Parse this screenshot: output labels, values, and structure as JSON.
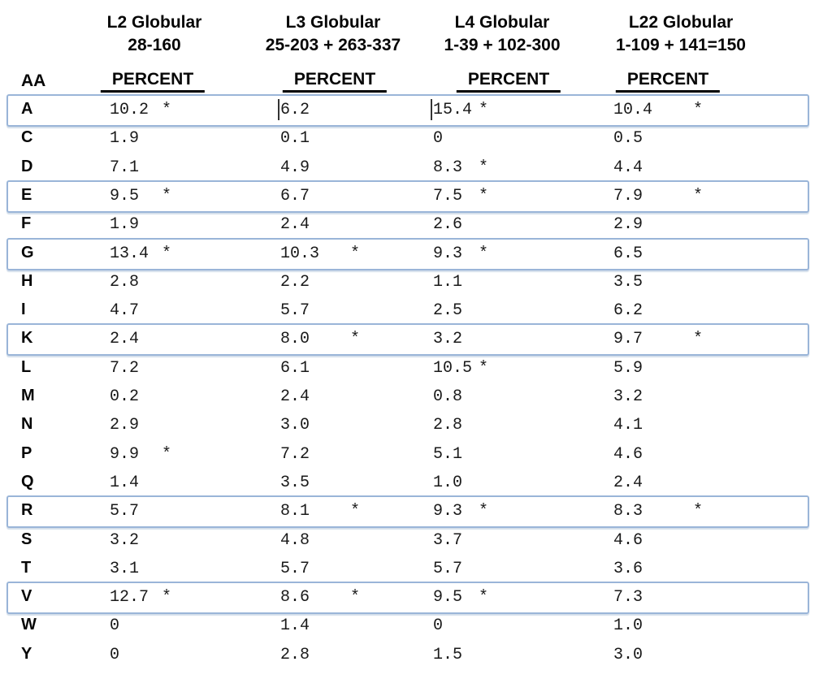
{
  "table": {
    "aa_label": "AA",
    "percent_label": "PERCENT",
    "columns": [
      {
        "title": "L2 Globular",
        "range": "28-160"
      },
      {
        "title": "L3 Globular",
        "range": "25-203 + 263-337"
      },
      {
        "title": "L4 Globular",
        "range": "1-39 + 102-300"
      },
      {
        "title": "L22 Globular",
        "range": "1-109 + 141=150"
      }
    ],
    "rows": [
      {
        "aa": "A",
        "highlighted": true,
        "values": [
          {
            "v": "10.2",
            "star": true
          },
          {
            "v": "6.2",
            "star": false,
            "caret": true
          },
          {
            "v": "15.4",
            "star": true,
            "caret": true
          },
          {
            "v": "10.4",
            "star": true
          }
        ]
      },
      {
        "aa": "C",
        "highlighted": false,
        "values": [
          {
            "v": "1.9",
            "star": false
          },
          {
            "v": "0.1",
            "star": false
          },
          {
            "v": "0",
            "star": false
          },
          {
            "v": "0.5",
            "star": false
          }
        ]
      },
      {
        "aa": "D",
        "highlighted": false,
        "values": [
          {
            "v": "7.1",
            "star": false
          },
          {
            "v": "4.9",
            "star": false
          },
          {
            "v": "8.3",
            "star": true
          },
          {
            "v": "4.4",
            "star": false
          }
        ]
      },
      {
        "aa": "E",
        "highlighted": true,
        "values": [
          {
            "v": "9.5",
            "star": true
          },
          {
            "v": "6.7",
            "star": false
          },
          {
            "v": "7.5",
            "star": true
          },
          {
            "v": "7.9",
            "star": true
          }
        ]
      },
      {
        "aa": "F",
        "highlighted": false,
        "values": [
          {
            "v": "1.9",
            "star": false
          },
          {
            "v": "2.4",
            "star": false
          },
          {
            "v": "2.6",
            "star": false
          },
          {
            "v": "2.9",
            "star": false
          }
        ]
      },
      {
        "aa": "G",
        "highlighted": true,
        "values": [
          {
            "v": "13.4",
            "star": true
          },
          {
            "v": "10.3",
            "star": true
          },
          {
            "v": "9.3",
            "star": true
          },
          {
            "v": "6.5",
            "star": false
          }
        ]
      },
      {
        "aa": "H",
        "highlighted": false,
        "values": [
          {
            "v": "2.8",
            "star": false
          },
          {
            "v": "2.2",
            "star": false
          },
          {
            "v": "1.1",
            "star": false
          },
          {
            "v": "3.5",
            "star": false
          }
        ]
      },
      {
        "aa": "I",
        "highlighted": false,
        "values": [
          {
            "v": "4.7",
            "star": false
          },
          {
            "v": "5.7",
            "star": false
          },
          {
            "v": "2.5",
            "star": false
          },
          {
            "v": "6.2",
            "star": false
          }
        ]
      },
      {
        "aa": "K",
        "highlighted": true,
        "values": [
          {
            "v": "2.4",
            "star": false
          },
          {
            "v": "8.0",
            "star": true
          },
          {
            "v": "3.2",
            "star": false
          },
          {
            "v": "9.7",
            "star": true
          }
        ]
      },
      {
        "aa": "L",
        "highlighted": false,
        "values": [
          {
            "v": "7.2",
            "star": false
          },
          {
            "v": "6.1",
            "star": false
          },
          {
            "v": "10.5",
            "star": true
          },
          {
            "v": "5.9",
            "star": false
          }
        ]
      },
      {
        "aa": "M",
        "highlighted": false,
        "values": [
          {
            "v": "0.2",
            "star": false
          },
          {
            "v": "2.4",
            "star": false
          },
          {
            "v": "0.8",
            "star": false
          },
          {
            "v": "3.2",
            "star": false
          }
        ]
      },
      {
        "aa": "N",
        "highlighted": false,
        "values": [
          {
            "v": "2.9",
            "star": false
          },
          {
            "v": "3.0",
            "star": false
          },
          {
            "v": "2.8",
            "star": false
          },
          {
            "v": "4.1",
            "star": false
          }
        ]
      },
      {
        "aa": "P",
        "highlighted": false,
        "values": [
          {
            "v": "9.9",
            "star": true
          },
          {
            "v": "7.2",
            "star": false
          },
          {
            "v": "5.1",
            "star": false
          },
          {
            "v": "4.6",
            "star": false
          }
        ]
      },
      {
        "aa": "Q",
        "highlighted": false,
        "values": [
          {
            "v": "1.4",
            "star": false
          },
          {
            "v": "3.5",
            "star": false
          },
          {
            "v": "1.0",
            "star": false
          },
          {
            "v": "2.4",
            "star": false
          }
        ]
      },
      {
        "aa": "R",
        "highlighted": true,
        "values": [
          {
            "v": "5.7",
            "star": false
          },
          {
            "v": "8.1",
            "star": true
          },
          {
            "v": "9.3",
            "star": true
          },
          {
            "v": "8.3",
            "star": true
          }
        ]
      },
      {
        "aa": "S",
        "highlighted": false,
        "values": [
          {
            "v": "3.2",
            "star": false
          },
          {
            "v": "4.8",
            "star": false
          },
          {
            "v": "3.7",
            "star": false
          },
          {
            "v": "4.6",
            "star": false
          }
        ]
      },
      {
        "aa": "T",
        "highlighted": false,
        "values": [
          {
            "v": "3.1",
            "star": false
          },
          {
            "v": "5.7",
            "star": false
          },
          {
            "v": "5.7",
            "star": false
          },
          {
            "v": "3.6",
            "star": false
          }
        ]
      },
      {
        "aa": "V",
        "highlighted": true,
        "values": [
          {
            "v": "12.7",
            "star": true
          },
          {
            "v": "8.6",
            "star": true
          },
          {
            "v": "9.5",
            "star": true
          },
          {
            "v": "7.3",
            "star": false
          }
        ]
      },
      {
        "aa": "W",
        "highlighted": false,
        "values": [
          {
            "v": "0",
            "star": false
          },
          {
            "v": "1.4",
            "star": false
          },
          {
            "v": "0",
            "star": false
          },
          {
            "v": "1.0",
            "star": false
          }
        ]
      },
      {
        "aa": "Y",
        "highlighted": false,
        "values": [
          {
            "v": "0",
            "star": false
          },
          {
            "v": "2.8",
            "star": false
          },
          {
            "v": "1.5",
            "star": false
          },
          {
            "v": "3.0",
            "star": false
          }
        ]
      }
    ],
    "star_marker": "*"
  },
  "colors": {
    "highlight_border": "#9ab5d8",
    "text": "#111111",
    "background": "#ffffff"
  }
}
